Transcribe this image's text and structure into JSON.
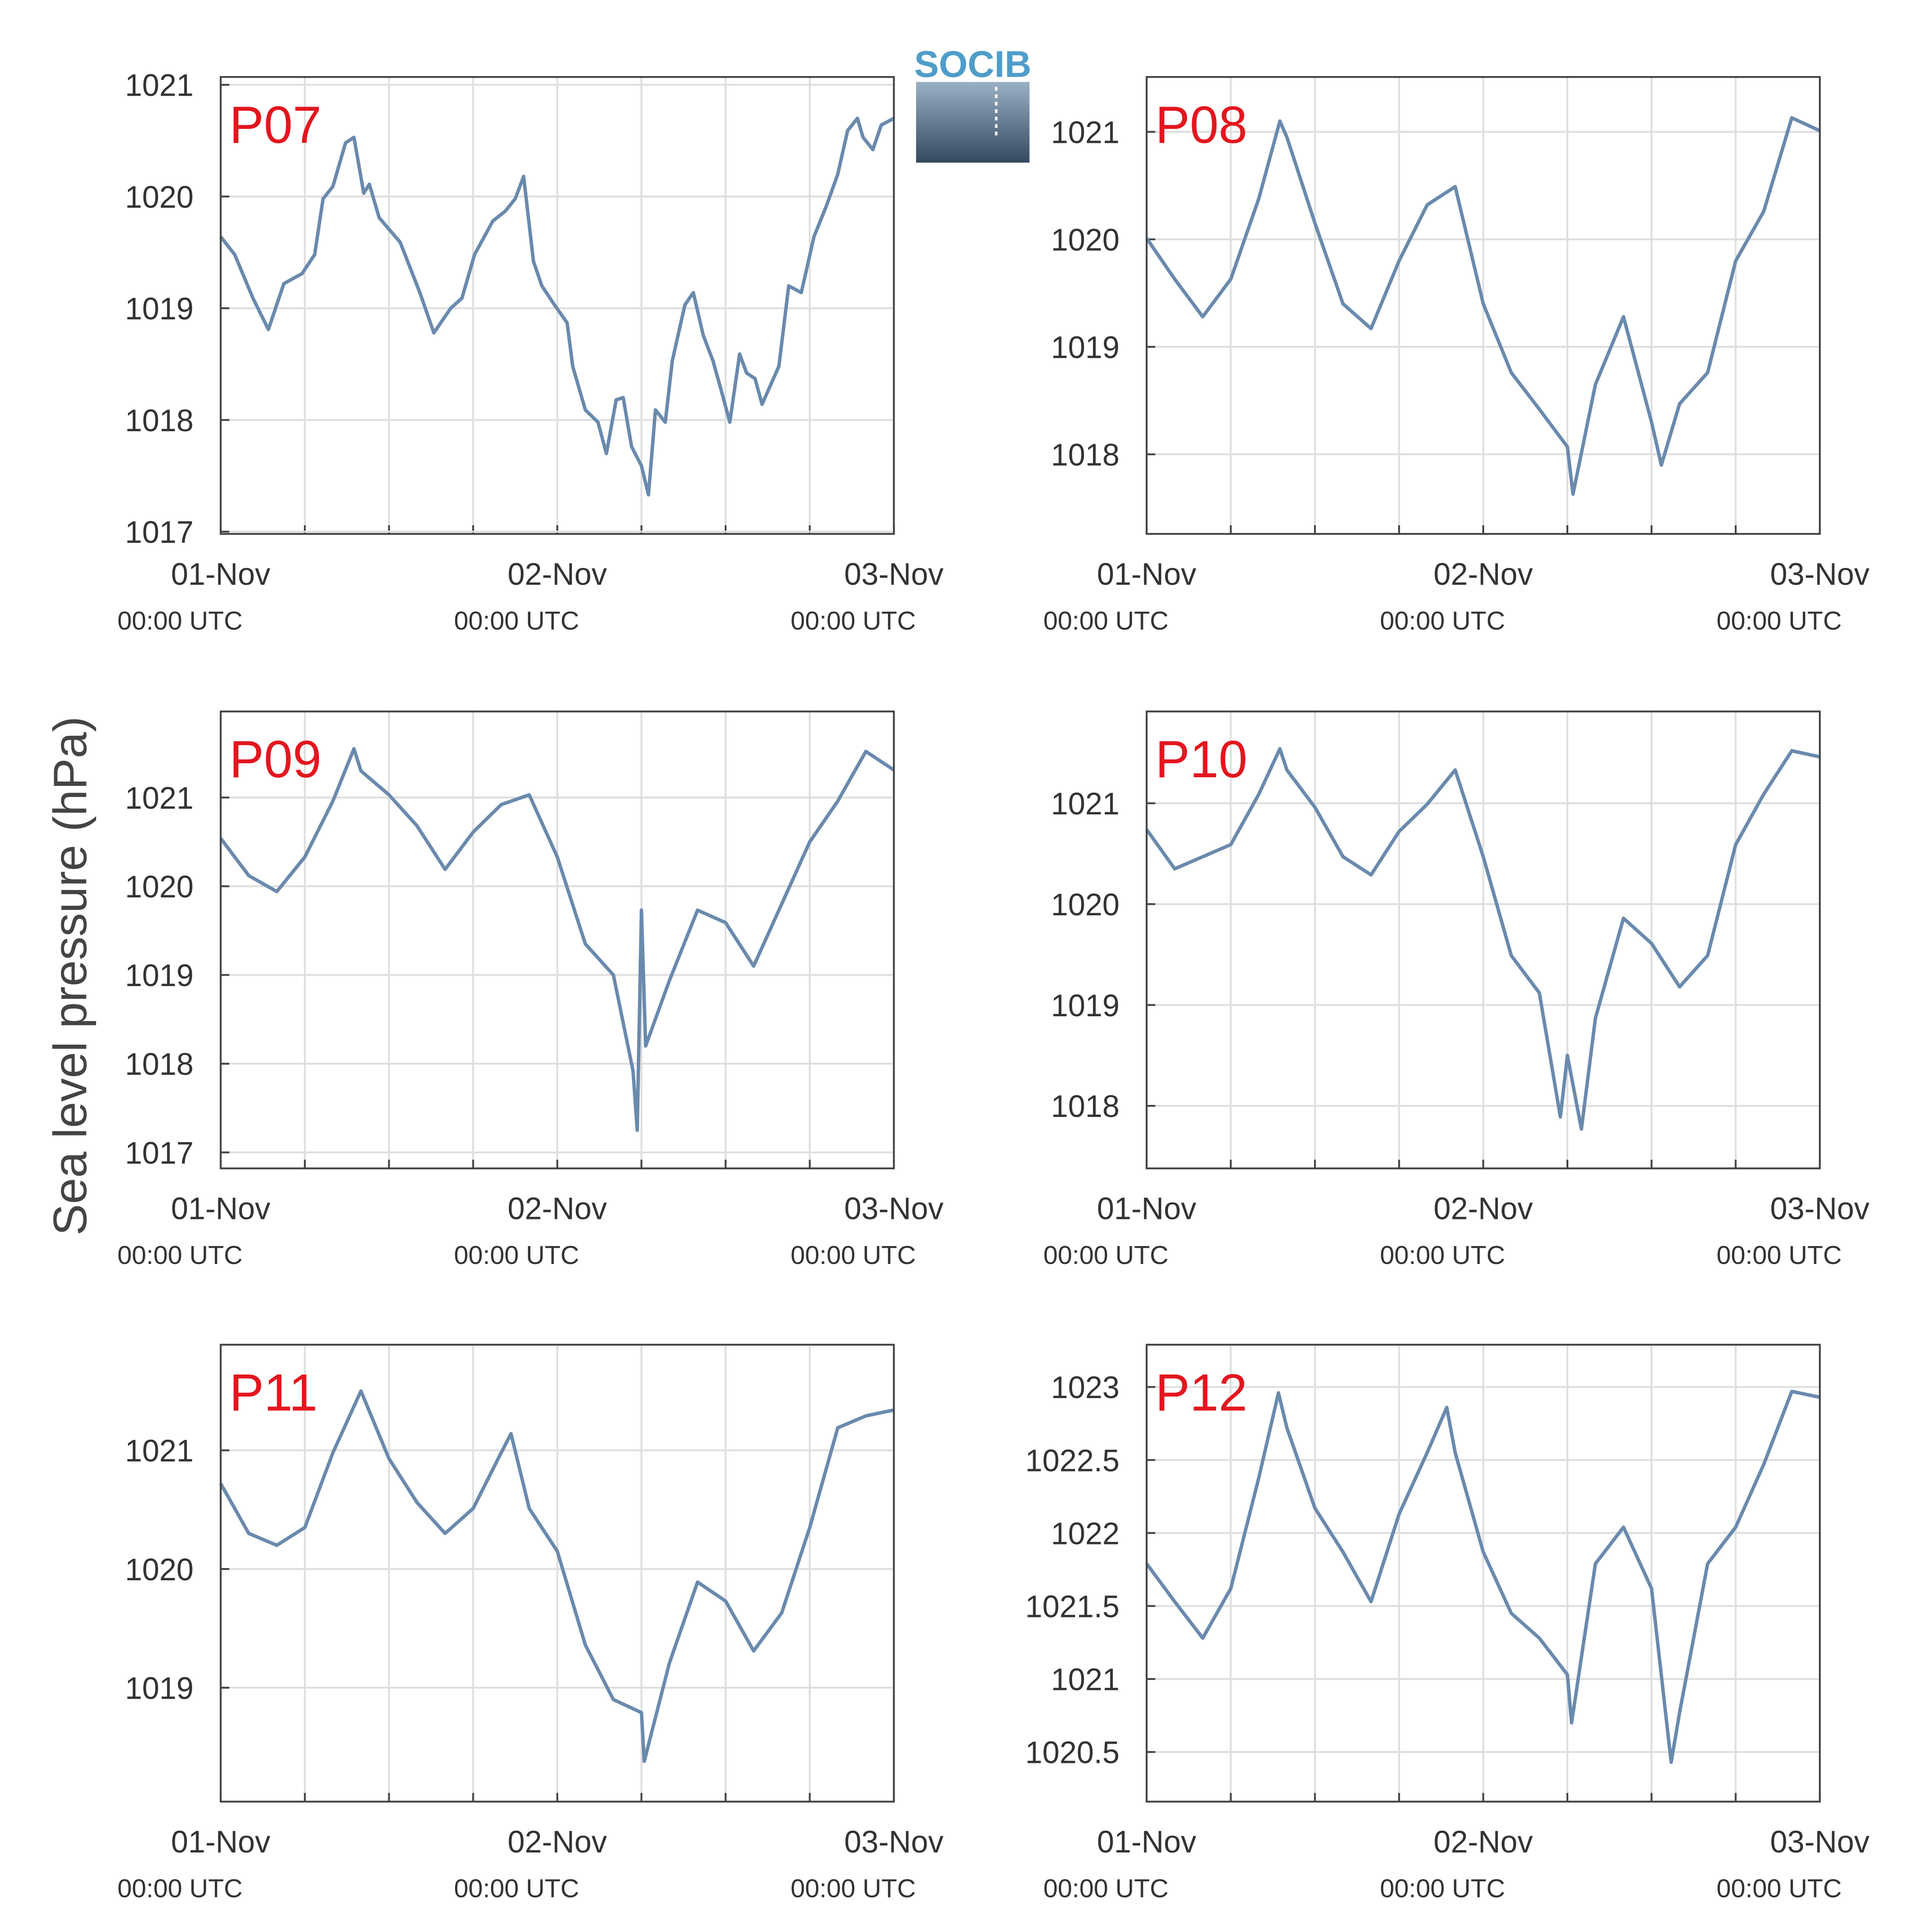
{
  "ylabel": "Sea level pressure (hPa)",
  "logo": "SOCIB",
  "chart_data": [
    {
      "type": "line",
      "title": "P07",
      "color": "#6a8aad",
      "grid": true,
      "x": [
        0,
        1,
        2.3,
        3.4,
        4.5,
        5.8,
        6.7,
        7.3,
        8,
        8.9,
        9.5,
        10.2,
        10.6,
        11.3,
        12.8,
        14.2,
        15.2,
        16.4,
        17.2,
        18.1,
        19.4,
        20.3,
        21,
        21.6,
        22.3,
        22.9,
        23.8,
        24.7,
        25.1,
        26,
        26.9,
        27.5,
        28.2,
        28.7,
        29.3,
        30,
        30.5,
        31,
        31.7,
        32.2,
        33.1,
        33.7,
        34.4,
        35.1,
        35.7,
        36.3,
        37,
        37.5,
        38.1,
        38.6,
        39.2,
        39.8,
        40.5,
        41.4,
        42.3,
        43.2,
        44,
        44.7,
        45.4,
        45.8,
        46.5,
        47.1,
        48
      ],
      "values": [
        1019.64,
        1019.48,
        1019.09,
        1018.81,
        1019.22,
        1019.31,
        1019.48,
        1019.98,
        1020.09,
        1020.48,
        1020.53,
        1020.03,
        1020.11,
        1019.81,
        1019.59,
        1019.14,
        1018.78,
        1019.0,
        1019.09,
        1019.48,
        1019.78,
        1019.87,
        1019.98,
        1020.18,
        1019.42,
        1019.2,
        1019.03,
        1018.87,
        1018.48,
        1018.09,
        1017.98,
        1017.7,
        1018.18,
        1018.2,
        1017.76,
        1017.59,
        1017.33,
        1018.09,
        1017.98,
        1018.53,
        1019.03,
        1019.14,
        1018.76,
        1018.53,
        1018.26,
        1017.98,
        1018.59,
        1018.42,
        1018.37,
        1018.14,
        1018.31,
        1018.48,
        1019.2,
        1019.14,
        1019.64,
        1019.92,
        1020.2,
        1020.59,
        1020.7,
        1020.53,
        1020.42,
        1020.64,
        1020.7
      ],
      "xlim": [
        0,
        48
      ],
      "xticks": [
        {
          "value": 0,
          "label": [
            "01-Nov",
            "00:00 UTC"
          ]
        },
        {
          "value": 24,
          "label": [
            "02-Nov",
            "00:00 UTC"
          ]
        },
        {
          "value": 48,
          "label": [
            "03-Nov",
            "00:00 UTC"
          ]
        }
      ],
      "xminorticks": [
        6,
        12,
        18,
        30,
        36,
        42
      ],
      "ylim": [
        1016.98,
        1021.07
      ],
      "yticks": [
        1017,
        1018,
        1019,
        1020,
        1021
      ]
    },
    {
      "type": "line",
      "title": "P08",
      "color": "#6a8aad",
      "grid": true,
      "x": [
        0,
        2,
        4,
        6,
        8,
        9.5,
        10,
        12,
        14,
        16,
        18,
        20,
        22,
        24,
        26,
        28,
        30,
        30.4,
        32,
        34,
        36,
        36.7,
        38,
        40,
        42,
        44,
        46,
        48
      ],
      "values": [
        1020.01,
        1019.63,
        1019.28,
        1019.63,
        1020.38,
        1021.1,
        1020.95,
        1020.15,
        1019.4,
        1019.17,
        1019.8,
        1020.32,
        1020.49,
        1019.4,
        1018.76,
        1018.42,
        1018.07,
        1017.63,
        1018.65,
        1019.28,
        1018.3,
        1017.9,
        1018.47,
        1018.76,
        1019.8,
        1020.26,
        1021.13,
        1021.01
      ],
      "xlim": [
        0,
        48
      ],
      "xticks": [
        {
          "value": 0,
          "label": [
            "01-Nov",
            "00:00 UTC"
          ]
        },
        {
          "value": 24,
          "label": [
            "02-Nov",
            "00:00 UTC"
          ]
        },
        {
          "value": 48,
          "label": [
            "03-Nov",
            "00:00 UTC"
          ]
        }
      ],
      "xminorticks": [
        6,
        12,
        18,
        30,
        36,
        42
      ],
      "ylim": [
        1017.26,
        1021.51
      ],
      "yticks": [
        1018,
        1019,
        1020,
        1021
      ]
    },
    {
      "type": "line",
      "title": "P09",
      "color": "#6a8aad",
      "grid": true,
      "x": [
        0,
        2,
        4,
        6,
        8,
        9.5,
        10,
        12,
        14,
        16,
        18,
        20,
        22,
        24,
        26,
        28,
        29.4,
        29.7,
        30,
        30.3,
        32,
        34,
        36,
        38,
        40,
        42,
        44,
        46,
        48
      ],
      "values": [
        1020.54,
        1020.12,
        1019.94,
        1020.33,
        1020.96,
        1021.55,
        1021.3,
        1021.03,
        1020.68,
        1020.19,
        1020.61,
        1020.92,
        1021.03,
        1020.33,
        1019.35,
        1019.0,
        1017.92,
        1017.25,
        1019.73,
        1018.2,
        1018.94,
        1019.73,
        1019.59,
        1019.1,
        1019.8,
        1020.5,
        1020.96,
        1021.52,
        1021.31
      ],
      "xlim": [
        0,
        48
      ],
      "xticks": [
        {
          "value": 0,
          "label": [
            "01-Nov",
            "00:00 UTC"
          ]
        },
        {
          "value": 24,
          "label": [
            "02-Nov",
            "00:00 UTC"
          ]
        },
        {
          "value": 48,
          "label": [
            "03-Nov",
            "00:00 UTC"
          ]
        }
      ],
      "xminorticks": [
        6,
        12,
        18,
        30,
        36,
        42
      ],
      "ylim": [
        1016.82,
        1021.97
      ],
      "yticks": [
        1017,
        1018,
        1019,
        1020,
        1021
      ]
    },
    {
      "type": "line",
      "title": "P10",
      "color": "#6a8aad",
      "grid": true,
      "x": [
        0,
        2,
        4,
        6,
        8,
        9.5,
        10,
        12,
        14,
        16,
        18,
        20,
        22,
        24,
        26,
        28,
        29.5,
        30,
        31,
        32,
        34,
        36,
        38,
        40,
        42,
        44,
        46,
        48
      ],
      "values": [
        1020.74,
        1020.35,
        1020.47,
        1020.59,
        1021.09,
        1021.54,
        1021.33,
        1020.96,
        1020.47,
        1020.29,
        1020.72,
        1020.99,
        1021.33,
        1020.47,
        1019.49,
        1019.12,
        1017.89,
        1018.5,
        1017.77,
        1018.87,
        1019.86,
        1019.61,
        1019.18,
        1019.49,
        1020.59,
        1021.09,
        1021.52,
        1021.46
      ],
      "xlim": [
        0,
        48
      ],
      "xticks": [
        {
          "value": 0,
          "label": [
            "01-Nov",
            "00:00 UTC"
          ]
        },
        {
          "value": 24,
          "label": [
            "02-Nov",
            "00:00 UTC"
          ]
        },
        {
          "value": 48,
          "label": [
            "03-Nov",
            "00:00 UTC"
          ]
        }
      ],
      "xminorticks": [
        6,
        12,
        18,
        30,
        36,
        42
      ],
      "ylim": [
        1017.38,
        1021.91
      ],
      "yticks": [
        1018,
        1019,
        1020,
        1021
      ]
    },
    {
      "type": "line",
      "title": "P11",
      "color": "#6a8aad",
      "grid": true,
      "x": [
        0,
        2,
        4,
        6,
        8,
        10,
        12,
        14,
        16,
        18,
        20,
        20.7,
        22,
        24,
        26,
        28,
        30,
        30.2,
        32,
        34,
        36,
        38,
        40,
        42,
        44,
        46,
        48
      ],
      "values": [
        1020.72,
        1020.3,
        1020.2,
        1020.35,
        1020.98,
        1021.5,
        1020.93,
        1020.56,
        1020.3,
        1020.51,
        1020.98,
        1021.14,
        1020.51,
        1020.15,
        1019.36,
        1018.9,
        1018.79,
        1018.38,
        1019.21,
        1019.89,
        1019.73,
        1019.31,
        1019.63,
        1020.35,
        1021.19,
        1021.29,
        1021.34
      ],
      "xlim": [
        0,
        48
      ],
      "xticks": [
        {
          "value": 0,
          "label": [
            "01-Nov",
            "00:00 UTC"
          ]
        },
        {
          "value": 24,
          "label": [
            "02-Nov",
            "00:00 UTC"
          ]
        },
        {
          "value": 48,
          "label": [
            "03-Nov",
            "00:00 UTC"
          ]
        }
      ],
      "xminorticks": [
        6,
        12,
        18,
        30,
        36,
        42
      ],
      "ylim": [
        1018.04,
        1021.89
      ],
      "yticks": [
        1019,
        1020,
        1021
      ]
    },
    {
      "type": "line",
      "title": "P12",
      "color": "#6a8aad",
      "grid": true,
      "x": [
        0,
        2,
        4,
        6,
        8,
        9.4,
        10,
        12,
        14,
        16,
        18,
        20,
        21.4,
        22,
        24,
        26,
        28,
        30,
        30.3,
        32,
        34,
        36,
        37.4,
        38,
        40,
        42,
        44,
        46,
        48
      ],
      "values": [
        1021.79,
        1021.53,
        1021.28,
        1021.62,
        1022.38,
        1022.96,
        1022.72,
        1022.17,
        1021.87,
        1021.53,
        1022.13,
        1022.55,
        1022.86,
        1022.55,
        1021.87,
        1021.45,
        1021.28,
        1021.03,
        1020.7,
        1021.79,
        1022.04,
        1021.62,
        1020.43,
        1020.77,
        1021.79,
        1022.04,
        1022.47,
        1022.97,
        1022.93
      ],
      "xlim": [
        0,
        48
      ],
      "xticks": [
        {
          "value": 0,
          "label": [
            "01-Nov",
            "00:00 UTC"
          ]
        },
        {
          "value": 24,
          "label": [
            "02-Nov",
            "00:00 UTC"
          ]
        },
        {
          "value": 48,
          "label": [
            "03-Nov",
            "00:00 UTC"
          ]
        }
      ],
      "xminorticks": [
        6,
        12,
        18,
        30,
        36,
        42
      ],
      "ylim": [
        1020.16,
        1023.29
      ],
      "yticks": [
        1020.5,
        1021,
        1021.5,
        1022,
        1022.5,
        1023
      ]
    }
  ]
}
